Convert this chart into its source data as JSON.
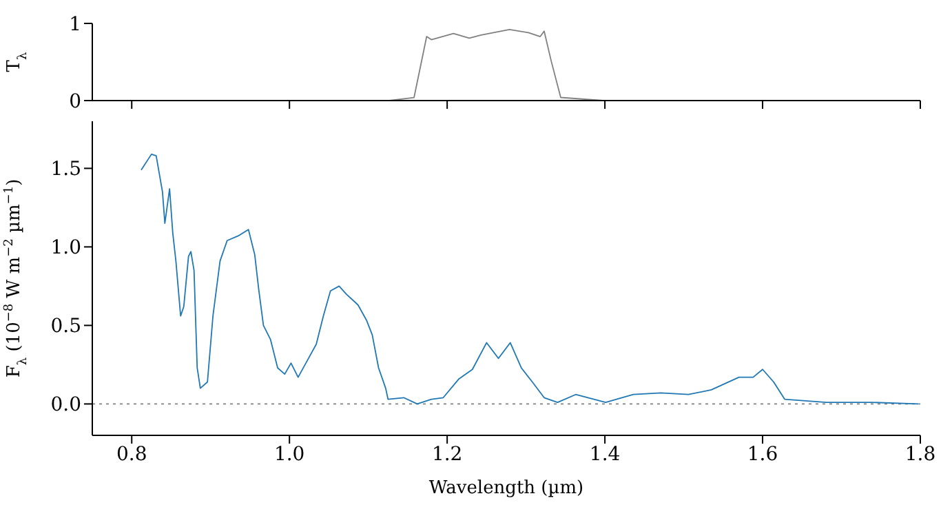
{
  "chart_data": [
    {
      "type": "line",
      "ylabel": "T$_{λ}$",
      "xlim": [
        0.75,
        1.8
      ],
      "ylim": [
        0,
        1
      ],
      "tick_labels": "y",
      "xticks": [
        {
          "value": 0.8,
          "label": null
        },
        {
          "value": 1.0,
          "label": null
        },
        {
          "value": 1.2,
          "label": null
        },
        {
          "value": 1.4,
          "label": null
        },
        {
          "value": 1.6,
          "label": null
        },
        {
          "value": 1.8,
          "label": null
        }
      ],
      "yticks": [
        0,
        1
      ],
      "series": [
        {
          "color": "#808080",
          "x": [
            1.127,
            1.158,
            1.174,
            1.18,
            1.208,
            1.228,
            1.243,
            1.279,
            1.303,
            1.318,
            1.323,
            1.332,
            1.344,
            1.398
          ],
          "values": [
            0,
            0.04,
            0.83,
            0.79,
            0.87,
            0.81,
            0.85,
            0.92,
            0.88,
            0.83,
            0.9,
            0.51,
            0.04,
            0
          ]
        }
      ]
    },
    {
      "type": "line",
      "xlabel": "Wavelength (µm)",
      "ylabel": "F$_{λ}$ (10$^{−8}$ W m$^{−2}$ µm$^{−1}$)",
      "xlim": [
        0.75,
        1.8
      ],
      "ylim": [
        -0.2,
        1.8
      ],
      "xticks": [
        0.8,
        {
          "value": 1.0,
          "label": "1.0"
        },
        1.2,
        1.4,
        1.6,
        1.8
      ],
      "yticks": [
        {
          "value": 0,
          "label": "0.0"
        },
        0.5,
        {
          "value": 1.0,
          "label": "1.0"
        },
        1.5
      ],
      "ref_lines": [
        {
          "axis": "y",
          "value": 0,
          "color": "#808080",
          "line_style": "dotted"
        }
      ],
      "series": [
        {
          "color": "#1f77b4",
          "x": [
            0.812,
            0.825,
            0.831,
            0.839,
            0.842,
            0.848,
            0.852,
            0.856,
            0.862,
            0.866,
            0.872,
            0.875,
            0.879,
            0.883,
            0.887,
            0.896,
            0.903,
            0.912,
            0.921,
            0.935,
            0.948,
            0.956,
            0.961,
            0.967,
            0.976,
            0.985,
            0.994,
            1.002,
            1.011,
            1.023,
            1.034,
            1.043,
            1.052,
            1.063,
            1.072,
            1.087,
            1.098,
            1.105,
            1.113,
            1.122,
            1.125,
            1.145,
            1.162,
            1.18,
            1.195,
            1.215,
            1.232,
            1.25,
            1.265,
            1.28,
            1.294,
            1.308,
            1.323,
            1.34,
            1.363,
            1.401,
            1.436,
            1.471,
            1.506,
            1.535,
            1.57,
            1.588,
            1.6,
            1.614,
            1.628,
            1.681,
            1.739,
            1.798
          ],
          "values": [
            1.49,
            1.59,
            1.58,
            1.35,
            1.15,
            1.37,
            1.09,
            0.91,
            0.56,
            0.62,
            0.94,
            0.97,
            0.85,
            0.23,
            0.1,
            0.14,
            0.56,
            0.91,
            1.04,
            1.07,
            1.11,
            0.95,
            0.73,
            0.5,
            0.41,
            0.23,
            0.19,
            0.26,
            0.17,
            0.28,
            0.38,
            0.56,
            0.72,
            0.75,
            0.7,
            0.63,
            0.53,
            0.44,
            0.23,
            0.1,
            0.03,
            0.04,
            0.0,
            0.03,
            0.04,
            0.16,
            0.22,
            0.39,
            0.29,
            0.39,
            0.23,
            0.14,
            0.04,
            0.01,
            0.06,
            0.01,
            0.06,
            0.07,
            0.06,
            0.09,
            0.17,
            0.17,
            0.22,
            0.14,
            0.03,
            0.01,
            0.01,
            0.0
          ]
        }
      ]
    }
  ]
}
